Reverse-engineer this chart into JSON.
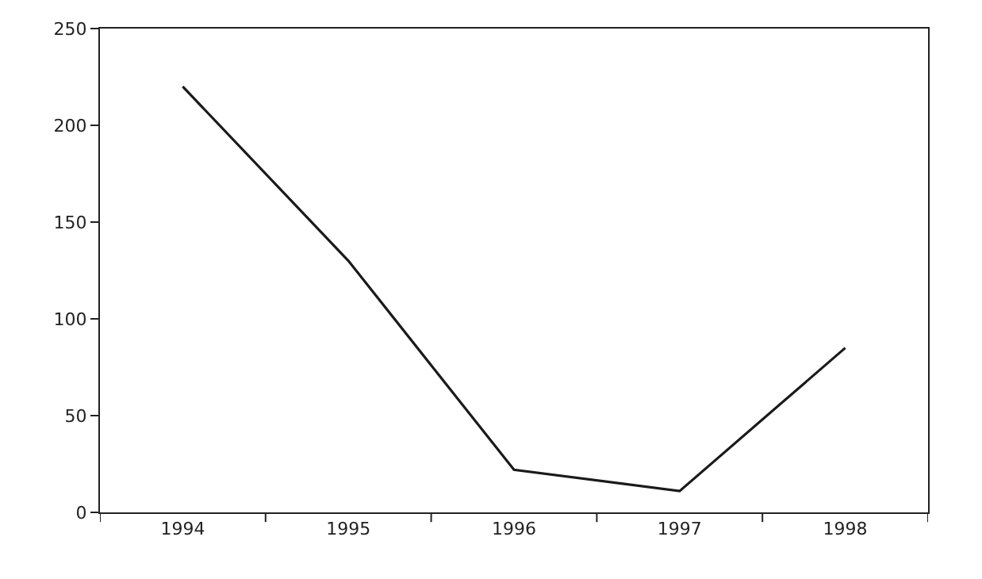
{
  "chart_data": {
    "type": "line",
    "categories": [
      "1994",
      "1995",
      "1996",
      "1997",
      "1998"
    ],
    "series": [
      {
        "color": "#1a1a1a",
        "values": [
          220,
          130,
          22,
          11,
          85
        ]
      }
    ],
    "ylim": [
      0,
      250
    ],
    "yticks": [
      0,
      50,
      100,
      150,
      200,
      250
    ],
    "marker": "none",
    "line_style": "solid"
  }
}
